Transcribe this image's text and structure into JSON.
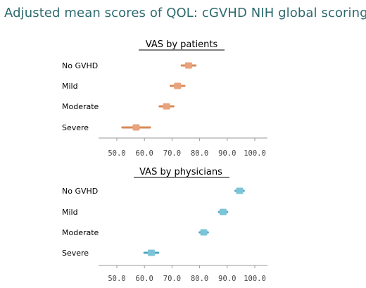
{
  "title": "Adjusted mean scores of QOL: cGVHD NIH global scoring",
  "chart_data": [
    {
      "type": "scatter",
      "title": "VAS by patients",
      "categories": [
        "No GVHD",
        "Mild",
        "Moderate",
        "Severe"
      ],
      "series": [
        {
          "values": [
            76,
            72,
            68,
            57
          ],
          "ci": [
            [
              73.5,
              78.5
            ],
            [
              69.5,
              74.5
            ],
            [
              65.5,
              70.5
            ],
            [
              52,
              62
            ]
          ]
        }
      ],
      "xlim": [
        50,
        100
      ],
      "xticks": [
        "50.0",
        "60.0",
        "70.0",
        "80.0",
        "90.0",
        "100.0"
      ],
      "xlabel": "",
      "ylabel": "",
      "grid": false,
      "color": "#e8a37c",
      "ci_color": "#d98a57"
    },
    {
      "type": "scatter",
      "title": "VAS by physicians",
      "categories": [
        "No GVHD",
        "Mild",
        "Moderate",
        "Severe"
      ],
      "series": [
        {
          "values": [
            94.5,
            88.5,
            81.5,
            62.5
          ],
          "ci": [
            [
              93,
              96
            ],
            [
              87,
              90
            ],
            [
              80,
              83
            ],
            [
              60,
              65
            ]
          ]
        }
      ],
      "xlim": [
        50,
        100
      ],
      "xticks": [
        "50.0",
        "60.0",
        "70.0",
        "80.0",
        "90.0",
        "100.0"
      ],
      "xlabel": "",
      "ylabel": "",
      "grid": false,
      "color": "#7cc4d8",
      "ci_color": "#4fa6c0"
    }
  ]
}
